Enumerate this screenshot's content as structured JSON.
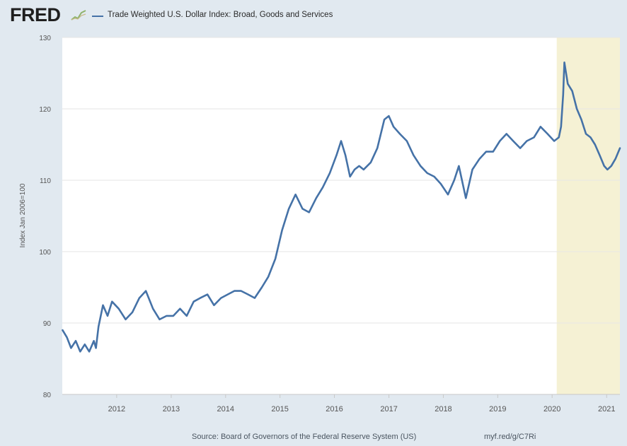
{
  "header": {
    "logo_text": "FRED",
    "logo_icon": "fred-graph-logo-icon"
  },
  "chart_data": {
    "type": "line",
    "title": "",
    "ylabel": "Index Jan 2006=100",
    "xlabel": "",
    "ylim": [
      80,
      130
    ],
    "xlim": [
      "2011-01-01",
      "2021-03-31"
    ],
    "y_ticks": [
      "80",
      "90",
      "100",
      "110",
      "120",
      "130"
    ],
    "x_ticks": [
      "2012",
      "2013",
      "2014",
      "2015",
      "2016",
      "2017",
      "2018",
      "2019",
      "2020",
      "2021"
    ],
    "grid": "horizontal",
    "shaded_region": {
      "start": "2020-02-01",
      "end": "2021-03-31",
      "color": "#f5f1d4",
      "meaning": "recession"
    },
    "series": [
      {
        "name": "Trade Weighted U.S. Dollar Index: Broad, Goods and Services",
        "color": "#4572a7",
        "x": [
          "2011-01-03",
          "2011-02-01",
          "2011-03-01",
          "2011-04-01",
          "2011-05-01",
          "2011-06-01",
          "2011-07-01",
          "2011-08-01",
          "2011-08-15",
          "2011-09-01",
          "2011-10-01",
          "2011-11-01",
          "2011-12-01",
          "2012-01-15",
          "2012-03-01",
          "2012-04-15",
          "2012-06-01",
          "2012-07-15",
          "2012-09-01",
          "2012-10-15",
          "2012-12-01",
          "2013-01-15",
          "2013-03-01",
          "2013-04-15",
          "2013-06-01",
          "2013-07-15",
          "2013-09-01",
          "2013-10-15",
          "2013-12-01",
          "2014-01-15",
          "2014-03-01",
          "2014-04-15",
          "2014-06-01",
          "2014-07-15",
          "2014-09-01",
          "2014-10-15",
          "2014-12-01",
          "2015-01-15",
          "2015-03-01",
          "2015-04-15",
          "2015-06-01",
          "2015-07-15",
          "2015-09-01",
          "2015-10-15",
          "2015-12-01",
          "2016-01-15",
          "2016-02-15",
          "2016-03-15",
          "2016-04-15",
          "2016-05-15",
          "2016-06-15",
          "2016-07-15",
          "2016-09-01",
          "2016-10-15",
          "2016-12-01",
          "2016-12-31",
          "2017-02-01",
          "2017-03-15",
          "2017-05-01",
          "2017-06-15",
          "2017-08-01",
          "2017-09-15",
          "2017-11-01",
          "2017-12-15",
          "2018-02-01",
          "2018-03-15",
          "2018-04-15",
          "2018-06-01",
          "2018-07-15",
          "2018-09-01",
          "2018-10-15",
          "2018-12-01",
          "2019-01-15",
          "2019-03-01",
          "2019-04-15",
          "2019-06-01",
          "2019-07-15",
          "2019-09-01",
          "2019-10-15",
          "2019-12-01",
          "2020-01-15",
          "2020-02-15",
          "2020-03-01",
          "2020-03-15",
          "2020-03-23",
          "2020-04-15",
          "2020-05-15",
          "2020-06-15",
          "2020-07-15",
          "2020-08-15",
          "2020-09-15",
          "2020-10-15",
          "2020-11-15",
          "2020-12-15",
          "2021-01-06",
          "2021-02-01",
          "2021-03-01",
          "2021-03-31"
        ],
        "values": [
          89.0,
          88.0,
          86.5,
          87.5,
          86.0,
          87.0,
          86.0,
          87.5,
          86.5,
          89.5,
          92.5,
          91.0,
          93.0,
          92.0,
          90.5,
          91.5,
          93.5,
          94.5,
          92.0,
          90.5,
          91.0,
          91.0,
          92.0,
          91.0,
          93.0,
          93.5,
          94.0,
          92.5,
          93.5,
          94.0,
          94.5,
          94.5,
          94.0,
          93.5,
          95.0,
          96.5,
          99.0,
          103.0,
          106.0,
          108.0,
          106.0,
          105.5,
          107.5,
          109.0,
          111.0,
          113.5,
          115.5,
          113.5,
          110.5,
          111.5,
          112.0,
          111.5,
          112.5,
          114.5,
          118.5,
          119.0,
          117.5,
          116.5,
          115.5,
          113.5,
          112.0,
          111.0,
          110.5,
          109.5,
          108.0,
          110.0,
          112.0,
          107.5,
          111.5,
          113.0,
          114.0,
          114.0,
          115.5,
          116.5,
          115.5,
          114.5,
          115.5,
          116.0,
          117.5,
          116.5,
          115.5,
          116.0,
          117.5,
          122.0,
          126.5,
          123.5,
          122.5,
          120.0,
          118.5,
          116.5,
          116.0,
          115.0,
          113.5,
          112.0,
          111.5,
          112.0,
          113.0,
          114.5
        ]
      }
    ]
  },
  "footer": {
    "source": "Source: Board of Governors of the Federal Reserve System (US)",
    "shortlink": "myf.red/g/C7Ri"
  }
}
